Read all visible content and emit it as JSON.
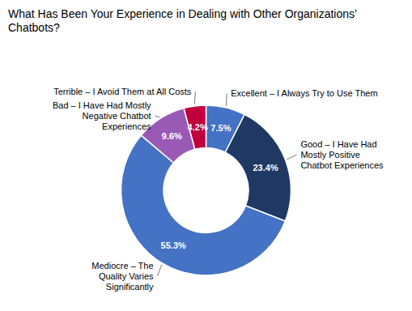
{
  "chart_data": {
    "type": "donut",
    "title": "What Has Been Your Experience in Dealing with Other Organizations’ Chatbots?",
    "categories": [
      "Excellent – I Always Try to Use Them",
      "Good – I Have Had\nMostly Positive\nChatbot Experiences",
      "Mediocre – The\nQuality Varies\nSignificantly",
      "Bad – I Have Had Mostly\nNegative Chatbot\nExperiences",
      "Terrible – I Avoid Them at All Costs"
    ],
    "values": [
      7.5,
      23.4,
      55.3,
      9.6,
      4.2
    ],
    "value_labels": [
      "7.5%",
      "23.4%",
      "55.3%",
      "9.6%",
      "4.2%"
    ],
    "colors": [
      "#4472C4",
      "#1F3864",
      "#4472C4",
      "#9B59B6",
      "#C0003C"
    ],
    "data_labels": true
  }
}
